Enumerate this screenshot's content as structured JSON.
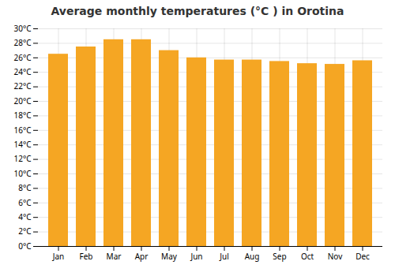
{
  "chart_data": {
    "type": "bar",
    "title": "Average monthly temperatures (°C ) in Orotina",
    "categories": [
      "Jan",
      "Feb",
      "Mar",
      "Apr",
      "May",
      "Jun",
      "Jul",
      "Aug",
      "Sep",
      "Oct",
      "Nov",
      "Dec"
    ],
    "values": [
      26.5,
      27.5,
      28.5,
      28.5,
      27.0,
      26.0,
      25.7,
      25.7,
      25.5,
      25.2,
      25.1,
      25.6
    ],
    "color": "#F5A623",
    "ylim": [
      0,
      30
    ],
    "yticks": [
      {
        "value": 0,
        "label": "0°C"
      },
      {
        "value": 2,
        "label": "2°C"
      },
      {
        "value": 4,
        "label": "4°C"
      },
      {
        "value": 6,
        "label": "6°C"
      },
      {
        "value": 8,
        "label": "8°C"
      },
      {
        "value": 10,
        "label": "10°C"
      },
      {
        "value": 12,
        "label": "12°C"
      },
      {
        "value": 14,
        "label": "14°C"
      },
      {
        "value": 16,
        "label": "16°C"
      },
      {
        "value": 18,
        "label": "18°C"
      },
      {
        "value": 20,
        "label": "20°C"
      },
      {
        "value": 22,
        "label": "22°C"
      },
      {
        "value": 24,
        "label": "24°C"
      },
      {
        "value": 26,
        "label": "26°C"
      },
      {
        "value": 28,
        "label": "28°C"
      },
      {
        "value": 30,
        "label": "30°C"
      }
    ],
    "grid": true
  }
}
